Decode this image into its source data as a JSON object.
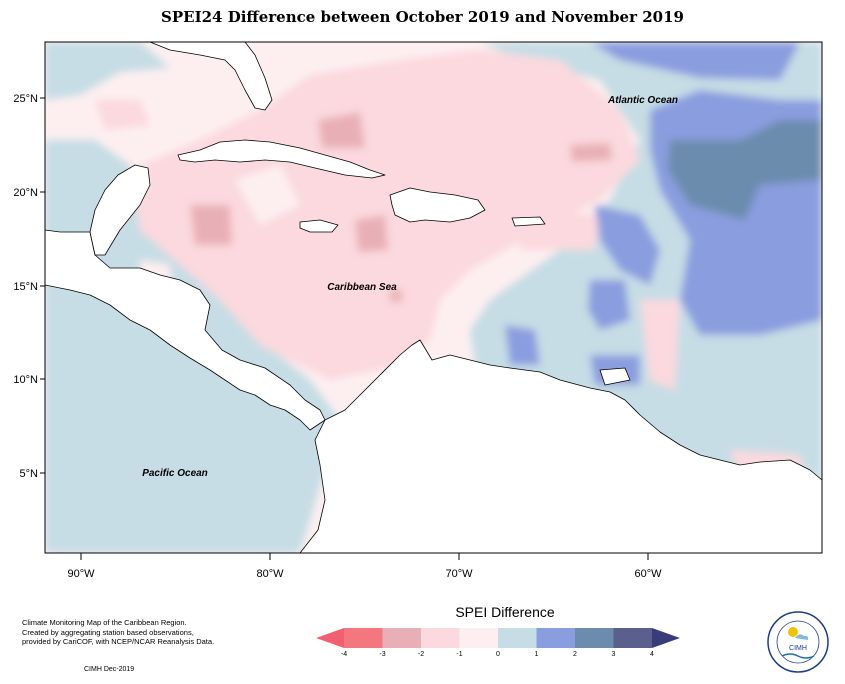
{
  "title": "SPEI24 Difference between October 2019 and November 2019",
  "map": {
    "lat_ticks": [
      "25°N",
      "20°N",
      "15°N",
      "10°N",
      "5°N"
    ],
    "lon_ticks": [
      "90°W",
      "80°W",
      "70°W",
      "60°W"
    ],
    "labels": {
      "atlantic": "Atlantic Ocean",
      "caribbean": "Caribbean Sea",
      "pacific": "Pacific Ocean"
    }
  },
  "legend": {
    "title": "SPEI Difference",
    "tick_labels": [
      "-4",
      "-3",
      "-2",
      "-1",
      "0",
      "1",
      "2",
      "3",
      "4"
    ],
    "colors": [
      "#f4777f",
      "#e8b0b6",
      "#fbd9de",
      "#fdeff0",
      "#c6dde5",
      "#8a9ddf",
      "#6c8cae",
      "#5a5f8e"
    ],
    "arrow_colors": {
      "low": "#f06070",
      "high": "#3a3b7a"
    }
  },
  "credits": {
    "line1": "Climate Monitoring Map of the Caribbean Region.",
    "line2": "Created by aggregating station based observations,",
    "line3": "provided by CariCOF, with NCEP/NCAR Reanalysis Data.",
    "date": "CIMH Dec-2019"
  },
  "logo": {
    "text": "CIMH"
  }
}
